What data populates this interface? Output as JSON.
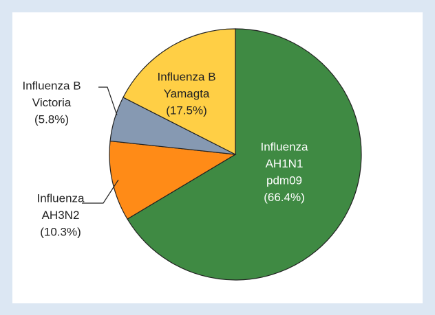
{
  "chart_data": {
    "type": "pie",
    "categories": [
      [
        "Influenza",
        "AH1N1",
        "pdm09"
      ],
      [
        "Influenza",
        "AH3N2"
      ],
      [
        "Influenza B",
        "Victoria"
      ],
      [
        "Influenza B",
        "Yamagta"
      ]
    ],
    "values": [
      66.4,
      10.3,
      5.8,
      17.5
    ],
    "value_labels": [
      "(66.4%)",
      "(10.3%)",
      "(5.8%)",
      "(17.5%)"
    ],
    "colors": [
      "#3f8a43",
      "#ff8b17",
      "#8699b2",
      "#ffcf45"
    ]
  }
}
